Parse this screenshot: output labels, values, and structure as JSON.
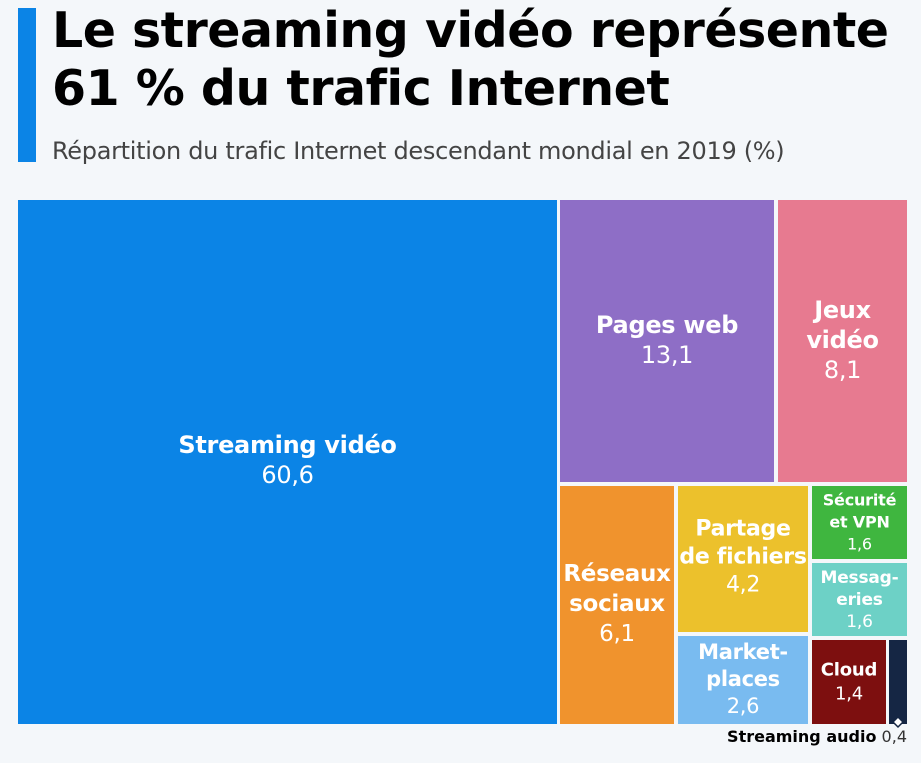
{
  "header": {
    "title": "Le streaming vidéo représente 61 % du trafic Internet",
    "subtitle": "Répartition du trafic Internet descendant mondial en 2019 (%)"
  },
  "chart_data": {
    "type": "treemap",
    "title": "Le streaming vidéo représente 61 % du trafic Internet",
    "subtitle": "Répartition du trafic Internet descendant mondial en 2019 (%)",
    "unit": "%",
    "items": [
      {
        "key": "streaming-video",
        "label_lines": [
          "Streaming vidéo"
        ],
        "value": 60.6,
        "display_value": "60,6",
        "color": "#0b84e6"
      },
      {
        "key": "pages-web",
        "label_lines": [
          "Pages web"
        ],
        "value": 13.1,
        "display_value": "13,1",
        "color": "#8e6ec6"
      },
      {
        "key": "jeux-video",
        "label_lines": [
          "Jeux",
          "vidéo"
        ],
        "value": 8.1,
        "display_value": "8,1",
        "color": "#e77a90"
      },
      {
        "key": "reseaux-sociaux",
        "label_lines": [
          "Réseaux",
          "sociaux"
        ],
        "value": 6.1,
        "display_value": "6,1",
        "color": "#f0932d"
      },
      {
        "key": "partage-de-fichiers",
        "label_lines": [
          "Partage",
          "de fichiers"
        ],
        "value": 4.2,
        "display_value": "4,2",
        "color": "#ecc12c"
      },
      {
        "key": "market-places",
        "label_lines": [
          "Market-",
          "places"
        ],
        "value": 2.6,
        "display_value": "2,6",
        "color": "#79bbf0"
      },
      {
        "key": "securite-et-vpn",
        "label_lines": [
          "Sécurité",
          "et VPN"
        ],
        "value": 1.6,
        "display_value": "1,6",
        "color": "#3fb63f"
      },
      {
        "key": "messageries",
        "label_lines": [
          "Messag-",
          "eries"
        ],
        "value": 1.6,
        "display_value": "1,6",
        "color": "#6dd1c6"
      },
      {
        "key": "cloud",
        "label_lines": [
          "Cloud"
        ],
        "value": 1.4,
        "display_value": "1,4",
        "color": "#7d0f0f"
      },
      {
        "key": "streaming-audio",
        "label_lines": [
          "Streaming audio"
        ],
        "value": 0.4,
        "display_value": "0,4",
        "color": "#152644",
        "label_outside": true
      }
    ]
  },
  "footnote": {
    "name": "Streaming audio",
    "value": "0,4"
  }
}
